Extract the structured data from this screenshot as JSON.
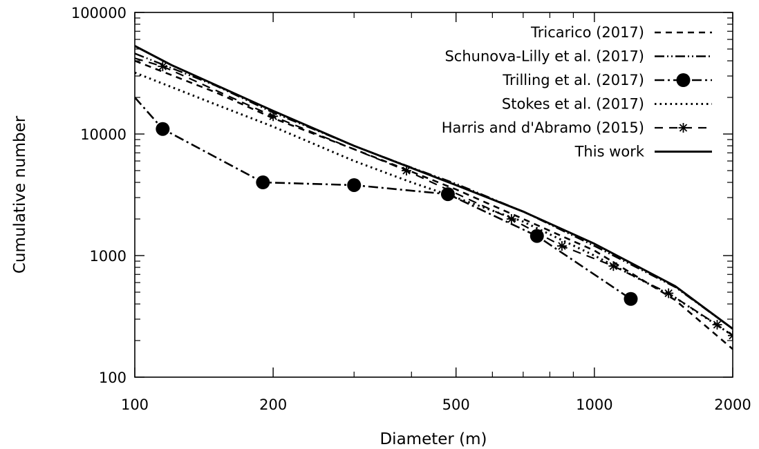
{
  "chart_data": {
    "type": "line",
    "xlabel": "Diameter (m)",
    "ylabel": "Cumulative number",
    "xscale": "log",
    "yscale": "log",
    "xlim": [
      100,
      2000
    ],
    "ylim": [
      100,
      100000
    ],
    "x_ticks": [
      100,
      200,
      500,
      1000,
      2000
    ],
    "x_tick_labels": [
      "100",
      "200",
      "500",
      "1000",
      "2000"
    ],
    "y_ticks": [
      100,
      1000,
      10000,
      100000
    ],
    "y_tick_labels": [
      "100",
      "1000",
      "10000",
      "100000"
    ],
    "grid": false,
    "legend_position": "top-right",
    "series": [
      {
        "name": "Tricarico (2017)",
        "style": "dashed",
        "marker": "none",
        "points": [
          [
            100,
            40000
          ],
          [
            150,
            22000
          ],
          [
            200,
            13500
          ],
          [
            300,
            7500
          ],
          [
            400,
            4900
          ],
          [
            500,
            3500
          ],
          [
            700,
            2000
          ],
          [
            1000,
            1100
          ],
          [
            1500,
            430
          ],
          [
            2000,
            170
          ]
        ]
      },
      {
        "name": "Schunova-Lilly et al. (2017)",
        "style": "dash-dot-dot",
        "marker": "none",
        "points": [
          [
            100,
            46000
          ],
          [
            150,
            25000
          ],
          [
            200,
            15000
          ],
          [
            300,
            8000
          ],
          [
            400,
            5300
          ],
          [
            500,
            3900
          ],
          [
            700,
            2300
          ],
          [
            1000,
            1200
          ],
          [
            1500,
            550
          ],
          [
            2000,
            250
          ]
        ]
      },
      {
        "name": "Trilling et al. (2017)",
        "style": "dash-dot",
        "marker": "circle",
        "points": [
          [
            100,
            20000
          ],
          [
            115,
            11000
          ],
          [
            190,
            4000
          ],
          [
            300,
            3800
          ],
          [
            480,
            3200
          ],
          [
            750,
            1450
          ],
          [
            1200,
            440
          ]
        ]
      },
      {
        "name": "Stokes et al. (2017)",
        "style": "dotted",
        "marker": "none",
        "points": [
          [
            100,
            32000
          ],
          [
            150,
            17500
          ],
          [
            200,
            11500
          ],
          [
            300,
            6000
          ],
          [
            400,
            4000
          ],
          [
            500,
            3000
          ],
          [
            700,
            1900
          ],
          [
            1000,
            1000
          ],
          [
            1500,
            450
          ],
          [
            2000,
            220
          ]
        ]
      },
      {
        "name": "Harris and d'Abramo (2015)",
        "style": "long-dash",
        "marker": "asterisk",
        "points": [
          [
            100,
            42000
          ],
          [
            115,
            36000
          ],
          [
            200,
            14000
          ],
          [
            390,
            5000
          ],
          [
            660,
            2000
          ],
          [
            850,
            1200
          ],
          [
            1100,
            820
          ],
          [
            1450,
            490
          ],
          [
            1850,
            270
          ],
          [
            2000,
            220
          ]
        ]
      },
      {
        "name": "This work",
        "style": "solid",
        "marker": "none",
        "points": [
          [
            100,
            53000
          ],
          [
            120,
            37000
          ],
          [
            200,
            15500
          ],
          [
            300,
            8000
          ],
          [
            500,
            3800
          ],
          [
            700,
            2300
          ],
          [
            1000,
            1250
          ],
          [
            1500,
            560
          ],
          [
            2000,
            250
          ]
        ]
      }
    ]
  }
}
